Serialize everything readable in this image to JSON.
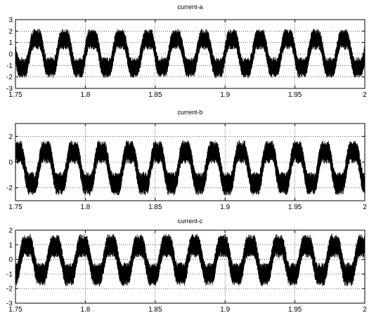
{
  "chart_data": [
    {
      "type": "line",
      "title": "current-a",
      "xlabel": "",
      "ylabel": "",
      "xlim": [
        1.75,
        2
      ],
      "ylim": [
        -3,
        3
      ],
      "xticks": [
        "1.75",
        "1.8",
        "1.85",
        "1.9",
        "1.95",
        "2"
      ],
      "yticks": [
        "3",
        "2",
        "1",
        "0",
        "-1",
        "-2",
        "-3"
      ],
      "grid": true,
      "series": [
        {
          "color": "#000000",
          "fundamental_hz": 50,
          "phase_deg": 0,
          "envelope_peak": 2.4,
          "envelope_trough": -2.3,
          "ripple_peak_to_peak": 1.8
        }
      ]
    },
    {
      "type": "line",
      "title": "current-b",
      "xlabel": "",
      "ylabel": "",
      "xlim": [
        1.75,
        2
      ],
      "ylim": [
        -3,
        3
      ],
      "xticks": [
        "1.75",
        "1.8",
        "1.85",
        "1.9",
        "1.95",
        "2"
      ],
      "yticks": [
        "2",
        "0",
        "-2"
      ],
      "grid": true,
      "series": [
        {
          "color": "#000000",
          "fundamental_hz": 50,
          "phase_deg": -120,
          "envelope_peak": 1.9,
          "envelope_trough": -2.8,
          "ripple_peak_to_peak": 1.8
        }
      ]
    },
    {
      "type": "line",
      "title": "current-c",
      "xlabel": "",
      "ylabel": "",
      "xlim": [
        1.75,
        2
      ],
      "ylim": [
        -3,
        2
      ],
      "xticks": [
        "1.75",
        "1.8",
        "1.85",
        "1.9",
        "1.95",
        "2"
      ],
      "yticks": [
        "2",
        "1",
        "0",
        "-1",
        "-2",
        "-3"
      ],
      "grid": true,
      "series": [
        {
          "color": "#000000",
          "fundamental_hz": 50,
          "phase_deg": 120,
          "envelope_peak": 1.9,
          "envelope_trough": -2.0,
          "ripple_peak_to_peak": 1.6
        }
      ]
    }
  ]
}
